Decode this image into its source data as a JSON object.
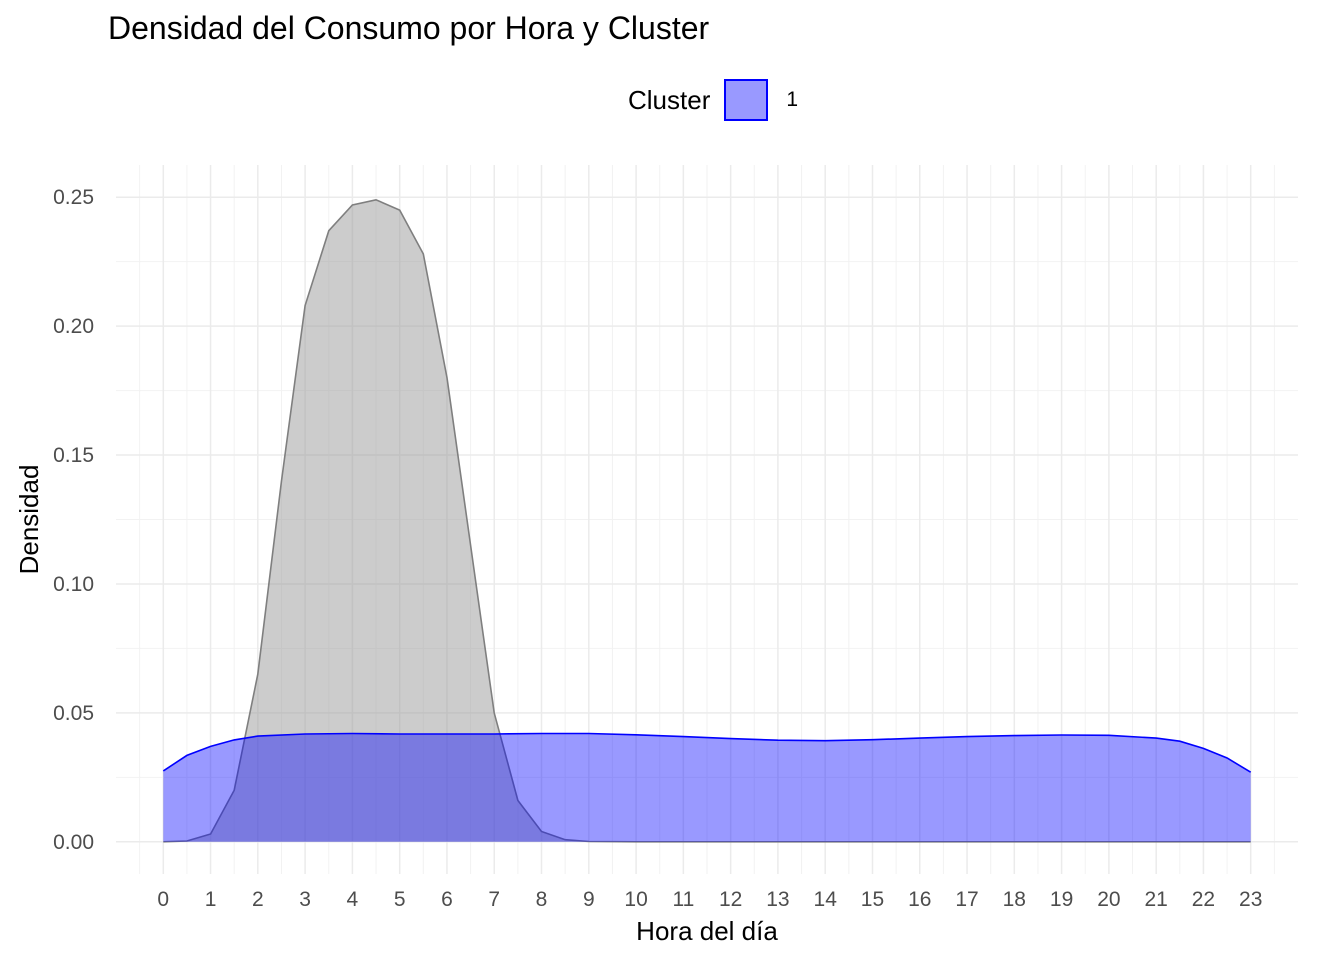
{
  "chart_data": {
    "type": "area",
    "title": "Densidad del Consumo por Hora y Cluster",
    "xlabel": "Hora del día",
    "ylabel": "Densidad",
    "xlim": [
      -1,
      24
    ],
    "ylim": [
      -0.0125,
      0.2625
    ],
    "x_ticks": [
      "0",
      "1",
      "2",
      "3",
      "4",
      "5",
      "6",
      "7",
      "8",
      "9",
      "10",
      "11",
      "12",
      "13",
      "14",
      "15",
      "16",
      "17",
      "18",
      "19",
      "20",
      "21",
      "22",
      "23"
    ],
    "y_ticks": [
      "0.00",
      "0.05",
      "0.10",
      "0.15",
      "0.20",
      "0.25"
    ],
    "grid": true,
    "legend": {
      "title": "Cluster",
      "placement": "top",
      "entries": [
        "1"
      ]
    },
    "series": [
      {
        "fill": "#999999",
        "fill_opacity": 0.5,
        "stroke": "#7f7f7f",
        "x": [
          0,
          0.5,
          1,
          1.5,
          2,
          2.5,
          3,
          3.5,
          4,
          4.5,
          5,
          5.5,
          6,
          6.5,
          7,
          7.5,
          8,
          8.5,
          9,
          10,
          11,
          12,
          13,
          14,
          15,
          16,
          17,
          18,
          19,
          20,
          21,
          22,
          23
        ],
        "y": [
          0.0,
          0.0003,
          0.003,
          0.02,
          0.065,
          0.14,
          0.208,
          0.237,
          0.247,
          0.249,
          0.245,
          0.228,
          0.18,
          0.115,
          0.05,
          0.016,
          0.004,
          0.0008,
          0.0001,
          0.0,
          0.0,
          0.0,
          0.0,
          0.0,
          0.0,
          0.0,
          0.0,
          0.0,
          0.0,
          0.0,
          0.0,
          0.0,
          0.0
        ]
      },
      {
        "fill": "#0000ff",
        "fill_opacity": 0.4,
        "stroke": "#0000ff",
        "x": [
          0,
          0.5,
          1,
          1.5,
          2,
          3,
          4,
          5,
          6,
          7,
          8,
          9,
          10,
          11,
          12,
          13,
          14,
          15,
          16,
          17,
          18,
          19,
          20,
          21,
          21.5,
          22,
          22.5,
          23
        ],
        "y": [
          0.0275,
          0.0335,
          0.037,
          0.0395,
          0.041,
          0.0418,
          0.042,
          0.0418,
          0.0418,
          0.0418,
          0.042,
          0.042,
          0.0415,
          0.0408,
          0.04,
          0.0394,
          0.0392,
          0.0396,
          0.0402,
          0.0408,
          0.0412,
          0.0414,
          0.0413,
          0.0402,
          0.039,
          0.0362,
          0.0325,
          0.027
        ]
      }
    ],
    "colors": {
      "cluster_1": "#0000ff",
      "other": "#999999"
    }
  }
}
